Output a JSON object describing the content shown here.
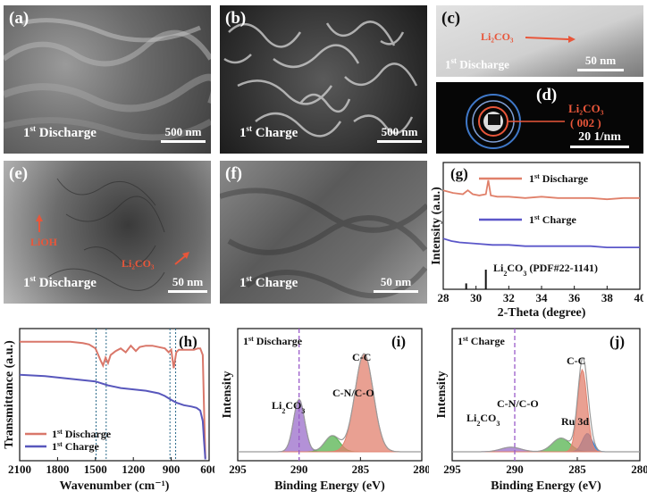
{
  "panels": {
    "a": {
      "label": "(a)",
      "caption": "1",
      "caption_sup": "st",
      "caption_tail": " Discharge",
      "scale": "500 nm"
    },
    "b": {
      "label": "(b)",
      "caption": "1",
      "caption_sup": "st",
      "caption_tail": " Charge",
      "scale": "500 nm"
    },
    "c": {
      "label": "(c)",
      "caption": "1",
      "caption_sup": "st",
      "caption_tail": " Discharge",
      "scale": "50 nm",
      "annotation": "Li₂CO₃"
    },
    "d": {
      "label": "(d)",
      "annotation_1": "Li₂CO₃",
      "annotation_2": "( 002 )",
      "scale": "20 1/nm"
    },
    "e": {
      "label": "(e)",
      "caption": "1",
      "caption_sup": "st",
      "caption_tail": " Discharge",
      "scale": "50 nm",
      "annotation_1": "LiOH",
      "annotation_2": "Li₂CO₃"
    },
    "f": {
      "label": "(f)",
      "caption": "1",
      "caption_sup": "st",
      "caption_tail": " Charge",
      "scale": "50 nm"
    },
    "g": {
      "label": "(g)"
    },
    "h": {
      "label": "(h)"
    },
    "i": {
      "label": "(i)"
    },
    "j": {
      "label": "(j)"
    }
  },
  "chart_data": [
    {
      "panel": "g",
      "type": "line",
      "xlabel": "2-Theta (degree)",
      "ylabel": "Intensity (a.u.)",
      "xlim": [
        28,
        40
      ],
      "xticks": [
        "28",
        "30",
        "32",
        "34",
        "36",
        "38",
        "40"
      ],
      "legend_position": "top-right",
      "series": [
        {
          "name": "1st Discharge",
          "color": "#e0806a",
          "x": [
            28,
            28.6,
            29.2,
            29.5,
            29.8,
            30.2,
            30.6,
            30.75,
            30.9,
            31.3,
            32,
            33,
            34,
            35,
            36,
            37,
            38,
            39,
            40
          ],
          "y": [
            0.78,
            0.76,
            0.75,
            0.78,
            0.75,
            0.74,
            0.75,
            0.86,
            0.74,
            0.73,
            0.73,
            0.72,
            0.73,
            0.72,
            0.72,
            0.72,
            0.71,
            0.72,
            0.72
          ]
        },
        {
          "name": "1st Charge",
          "color": "#5b57c9",
          "x": [
            28,
            28.5,
            29,
            30,
            31,
            32,
            33,
            34,
            35,
            36,
            37,
            38,
            39,
            40
          ],
          "y": [
            0.4,
            0.38,
            0.37,
            0.36,
            0.35,
            0.35,
            0.34,
            0.34,
            0.34,
            0.34,
            0.34,
            0.33,
            0.33,
            0.33
          ]
        }
      ],
      "reference": {
        "name": "Li2CO3 (PDF#22-1141)",
        "peaks": [
          {
            "x": 29.4,
            "h": 0.3
          },
          {
            "x": 30.6,
            "h": 1.0
          }
        ]
      }
    },
    {
      "panel": "h",
      "type": "line",
      "xlabel": "Wavenumber (cm⁻¹)",
      "ylabel": "Transmittance (a.u.)",
      "xlim": [
        2100,
        600
      ],
      "xticks": [
        "2100",
        "1800",
        "1500",
        "1200",
        "900",
        "600"
      ],
      "dashed_lines_x": [
        1495,
        1415,
        910,
        865
      ],
      "legend_position": "bottom-left",
      "series": [
        {
          "name": "1st Discharge",
          "color": "#d9776a",
          "x": [
            2100,
            1900,
            1700,
            1600,
            1550,
            1500,
            1460,
            1440,
            1420,
            1400,
            1380,
            1340,
            1300,
            1260,
            1220,
            1180,
            1150,
            1100,
            1050,
            1000,
            950,
            920,
            900,
            880,
            870,
            860,
            840,
            800,
            760,
            720,
            690,
            670,
            650,
            640,
            630
          ],
          "y": [
            0.9,
            0.9,
            0.9,
            0.89,
            0.88,
            0.85,
            0.76,
            0.72,
            0.78,
            0.74,
            0.8,
            0.83,
            0.85,
            0.82,
            0.87,
            0.83,
            0.86,
            0.87,
            0.87,
            0.86,
            0.85,
            0.82,
            0.84,
            0.7,
            0.76,
            0.82,
            0.84,
            0.84,
            0.84,
            0.84,
            0.85,
            0.85,
            0.8,
            0.4,
            0.02
          ]
        },
        {
          "name": "1st Charge",
          "color": "#5857bc",
          "x": [
            2100,
            1900,
            1700,
            1600,
            1500,
            1400,
            1300,
            1200,
            1100,
            1000,
            950,
            900,
            860,
            800,
            740,
            700,
            670,
            650,
            640,
            630
          ],
          "y": [
            0.65,
            0.64,
            0.62,
            0.61,
            0.6,
            0.57,
            0.55,
            0.54,
            0.53,
            0.51,
            0.49,
            0.46,
            0.44,
            0.42,
            0.41,
            0.4,
            0.38,
            0.3,
            0.15,
            0.01
          ]
        }
      ]
    },
    {
      "panel": "i",
      "type": "area",
      "title": "1st Discharge",
      "xlabel": "Binding Energy (eV)",
      "ylabel": "Intensity",
      "xlim": [
        295,
        280
      ],
      "xticks": [
        "295",
        "290",
        "285",
        "280"
      ],
      "dashed_line_x": 290,
      "peaks": [
        {
          "label": "Li₂CO₃",
          "center": 290.0,
          "height": 0.46,
          "width": 0.45,
          "color": "#9a6cc9"
        },
        {
          "label": "C-N/C-O",
          "center": 287.3,
          "height": 0.14,
          "width": 0.6,
          "color": "#55b34f"
        },
        {
          "label": "C-C",
          "center": 284.7,
          "height": 0.86,
          "width": 0.75,
          "color": "#e2806e"
        }
      ]
    },
    {
      "panel": "j",
      "type": "area",
      "title": "1st Charge",
      "xlabel": "Binding Energy (eV)",
      "ylabel": "Intensity",
      "xlim": [
        295,
        280
      ],
      "xticks": [
        "295",
        "290",
        "285",
        "280"
      ],
      "dashed_line_x": 290,
      "peaks": [
        {
          "label": "Li₂CO₃",
          "center": 290.3,
          "height": 0.04,
          "width": 0.8,
          "color": "#9a6cc9"
        },
        {
          "label": "C-N/C-O",
          "center": 286.3,
          "height": 0.12,
          "width": 0.7,
          "color": "#55b34f"
        },
        {
          "label": "Ru 3d",
          "center": 284.2,
          "height": 0.16,
          "width": 0.4,
          "color": "#2d7ad0"
        },
        {
          "label": "C-C",
          "center": 284.6,
          "height": 0.72,
          "width": 0.38,
          "color": "#e2806e"
        }
      ]
    }
  ]
}
